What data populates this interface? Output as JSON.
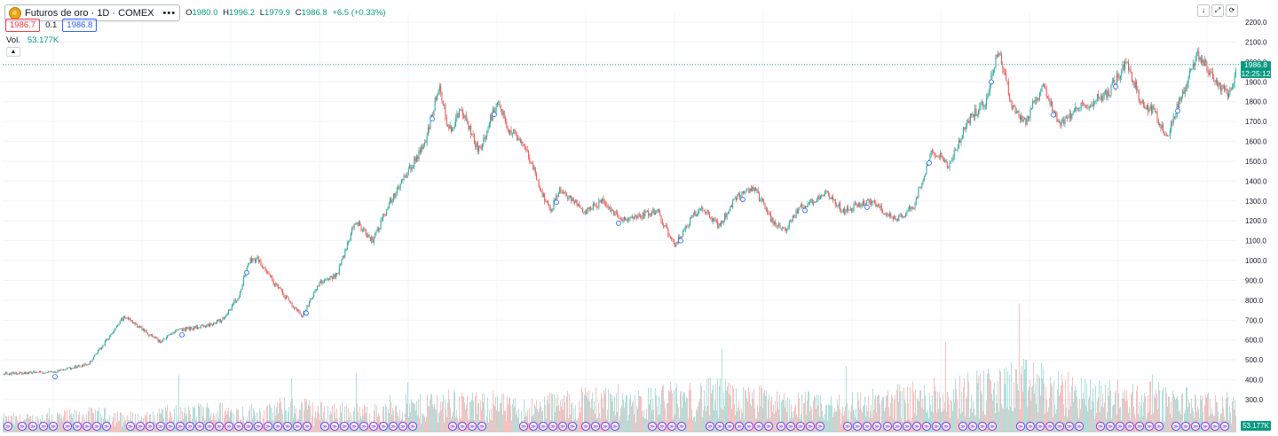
{
  "header": {
    "symbol_title": "Futuros de oro · 1D · COMEX",
    "more_label": "•••",
    "ohlc": {
      "open_label": "O",
      "open": "1980.0",
      "high_label": "H",
      "high": "1996.2",
      "low_label": "L",
      "low": "1979.9",
      "close_label": "C",
      "close": "1986.8",
      "change": "+6.5 (+0.33%)"
    },
    "bid": "1986.7",
    "spread": "0.1",
    "ask": "1986.8",
    "volume_label": "Vol.",
    "volume_value": "53.177K",
    "collapse_icon": "chevron-up-icon"
  },
  "toolbar": {
    "buttons": [
      "arrow-down-icon",
      "fullscreen-icon",
      "restore-icon"
    ]
  },
  "last_price": {
    "price": "1986.8",
    "countdown": "12:25:12"
  },
  "volume_last": "53.177K",
  "colors": {
    "up": "#26a69a",
    "down": "#ef5350",
    "accent": "#089981",
    "marker": "#7b3fe4",
    "grid": "#f0f3fa"
  },
  "chart_data": {
    "type": "candlestick",
    "title": "Futuros de oro · 1D · COMEX",
    "ylim": [
      300,
      2200
    ],
    "y_ticks": [
      "2200.0",
      "2100.0",
      "2000.0",
      "1900.0",
      "1800.0",
      "1700.0",
      "1600.0",
      "1500.0",
      "1400.0",
      "1300.0",
      "1200.0",
      "1100.0",
      "1000.0",
      "900.0",
      "800.0",
      "700.0",
      "600.0",
      "500.0",
      "400.0",
      "300.0"
    ],
    "y_tick_values": [
      2200,
      2100,
      2000,
      1900,
      1800,
      1700,
      1600,
      1500,
      1400,
      1300,
      1200,
      1100,
      1000,
      900,
      800,
      700,
      600,
      500,
      400,
      300
    ],
    "price_series": {
      "name": "Futuros de oro",
      "x_index": [
        0,
        60,
        100,
        140,
        180,
        200,
        230,
        250,
        270,
        280,
        290,
        310,
        340,
        360,
        380,
        400,
        420,
        440,
        460,
        480,
        495,
        505,
        520,
        540,
        560,
        575,
        590,
        610,
        620,
        630,
        660,
        680,
        700,
        740,
        760,
        790,
        810,
        830,
        850,
        870,
        885,
        900,
        930,
        950,
        980,
        1010,
        1030,
        1050,
        1070,
        1090,
        1110,
        1125,
        1140,
        1155,
        1175,
        1195,
        1210,
        1230,
        1250,
        1270,
        1285,
        1300,
        1315,
        1330,
        1350,
        1370,
        1385,
        1395
      ],
      "close": [
        430,
        440,
        480,
        720,
        590,
        650,
        670,
        700,
        830,
        1000,
        1010,
        880,
        720,
        890,
        930,
        1200,
        1100,
        1300,
        1450,
        1600,
        1900,
        1650,
        1750,
        1550,
        1800,
        1650,
        1600,
        1350,
        1250,
        1350,
        1250,
        1300,
        1200,
        1250,
        1080,
        1280,
        1170,
        1320,
        1360,
        1200,
        1150,
        1260,
        1340,
        1250,
        1300,
        1200,
        1280,
        1560,
        1480,
        1700,
        1800,
        2070,
        1780,
        1700,
        1880,
        1680,
        1750,
        1800,
        1850,
        2000,
        1800,
        1750,
        1620,
        1820,
        2040,
        1900,
        1840,
        1987
      ]
    },
    "volume_series": {
      "name": "Vol.",
      "last": "53.177K",
      "values": [
        18,
        22,
        24,
        20,
        26,
        30,
        28,
        34,
        30,
        28,
        36,
        42,
        38,
        34,
        40,
        46,
        44,
        48,
        52,
        45,
        40,
        36,
        42,
        48,
        56,
        62,
        70,
        58,
        52,
        48,
        44,
        38
      ]
    },
    "last_value": 1986.8
  }
}
